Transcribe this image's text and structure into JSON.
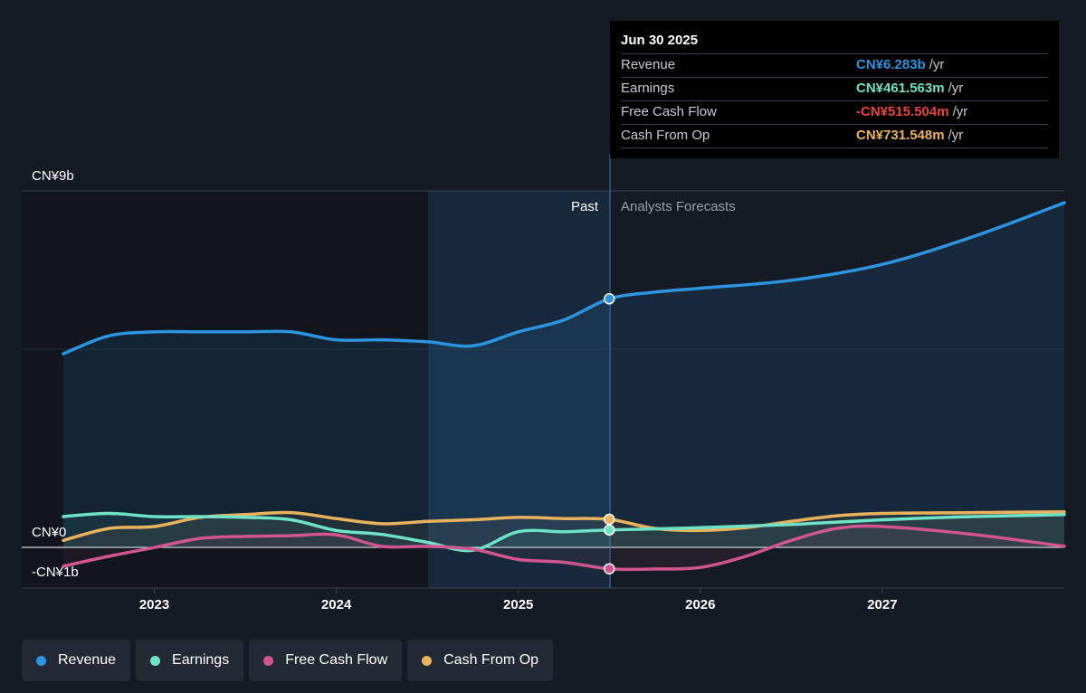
{
  "chart_data": {
    "type": "line",
    "y_axis_labels": {
      "top": "CN¥9b",
      "zero": "CN¥0",
      "bottom": "-CN¥1b"
    },
    "ylim": [
      -1,
      9
    ],
    "x_ticks": [
      "2023",
      "2024",
      "2025",
      "2026",
      "2027"
    ],
    "past_label": "Past",
    "forecast_label": "Analysts Forecasts",
    "series": [
      {
        "name": "Revenue",
        "color": "#2d94e0",
        "points": [
          [
            2022.5,
            4.9
          ],
          [
            2022.75,
            5.35
          ],
          [
            2023.0,
            5.45
          ],
          [
            2023.25,
            5.45
          ],
          [
            2023.5,
            5.45
          ],
          [
            2023.75,
            5.45
          ],
          [
            2024.0,
            5.25
          ],
          [
            2024.25,
            5.25
          ],
          [
            2024.5,
            5.2
          ],
          [
            2024.75,
            5.1
          ],
          [
            2025.0,
            5.45
          ],
          [
            2025.25,
            5.75
          ],
          [
            2025.5,
            6.283
          ],
          [
            2025.75,
            6.45
          ],
          [
            2026.0,
            6.55
          ],
          [
            2026.5,
            6.75
          ],
          [
            2027.0,
            7.15
          ],
          [
            2027.5,
            7.85
          ],
          [
            2028.0,
            8.7
          ]
        ]
      },
      {
        "name": "Earnings",
        "color": "#6fe3c7",
        "points": [
          [
            2022.5,
            0.8
          ],
          [
            2022.75,
            0.88
          ],
          [
            2023.0,
            0.8
          ],
          [
            2023.25,
            0.8
          ],
          [
            2023.5,
            0.78
          ],
          [
            2023.75,
            0.72
          ],
          [
            2024.0,
            0.45
          ],
          [
            2024.25,
            0.35
          ],
          [
            2024.5,
            0.15
          ],
          [
            2024.75,
            -0.05
          ],
          [
            2025.0,
            0.42
          ],
          [
            2025.25,
            0.42
          ],
          [
            2025.5,
            0.461563
          ],
          [
            2026.0,
            0.52
          ],
          [
            2026.5,
            0.6
          ],
          [
            2027.0,
            0.72
          ],
          [
            2027.5,
            0.8
          ],
          [
            2028.0,
            0.85
          ]
        ]
      },
      {
        "name": "Free Cash Flow",
        "color": "#d1558f",
        "points": [
          [
            2022.5,
            -0.45
          ],
          [
            2022.75,
            -0.2
          ],
          [
            2023.0,
            0.02
          ],
          [
            2023.25,
            0.25
          ],
          [
            2023.5,
            0.3
          ],
          [
            2023.75,
            0.32
          ],
          [
            2024.0,
            0.34
          ],
          [
            2024.25,
            0.05
          ],
          [
            2024.5,
            0.05
          ],
          [
            2024.75,
            -0.02
          ],
          [
            2025.0,
            -0.28
          ],
          [
            2025.25,
            -0.35
          ],
          [
            2025.5,
            -0.515504
          ],
          [
            2025.75,
            -0.52
          ],
          [
            2026.0,
            -0.48
          ],
          [
            2026.25,
            -0.2
          ],
          [
            2026.5,
            0.2
          ],
          [
            2026.75,
            0.5
          ],
          [
            2027.0,
            0.55
          ],
          [
            2027.5,
            0.35
          ],
          [
            2028.0,
            0.05
          ]
        ]
      },
      {
        "name": "Cash From Op",
        "color": "#e9b25e",
        "points": [
          [
            2022.5,
            0.2
          ],
          [
            2022.75,
            0.5
          ],
          [
            2023.0,
            0.55
          ],
          [
            2023.25,
            0.78
          ],
          [
            2023.5,
            0.85
          ],
          [
            2023.75,
            0.9
          ],
          [
            2024.0,
            0.75
          ],
          [
            2024.25,
            0.62
          ],
          [
            2024.5,
            0.68
          ],
          [
            2024.75,
            0.72
          ],
          [
            2025.0,
            0.78
          ],
          [
            2025.25,
            0.75
          ],
          [
            2025.5,
            0.731548
          ],
          [
            2025.75,
            0.5
          ],
          [
            2026.0,
            0.45
          ],
          [
            2026.25,
            0.52
          ],
          [
            2026.5,
            0.68
          ],
          [
            2026.75,
            0.82
          ],
          [
            2027.0,
            0.88
          ],
          [
            2027.5,
            0.9
          ],
          [
            2028.0,
            0.92
          ]
        ]
      }
    ]
  },
  "tooltip": {
    "date": "Jun 30 2025",
    "rows": [
      {
        "label": "Revenue",
        "value": "CN¥6.283b",
        "unit": "/yr",
        "color": "#2d94e0"
      },
      {
        "label": "Earnings",
        "value": "CN¥461.563m",
        "unit": "/yr",
        "color": "#6fe3c7"
      },
      {
        "label": "Free Cash Flow",
        "value": "-CN¥515.504m",
        "unit": "/yr",
        "color": "#e8453c"
      },
      {
        "label": "Cash From Op",
        "value": "CN¥731.548m",
        "unit": "/yr",
        "color": "#e9b25e"
      }
    ]
  },
  "legend": [
    {
      "label": "Revenue",
      "color": "#2d94e0"
    },
    {
      "label": "Earnings",
      "color": "#6fe3c7"
    },
    {
      "label": "Free Cash Flow",
      "color": "#d1558f"
    },
    {
      "label": "Cash From Op",
      "color": "#e9b25e"
    }
  ]
}
